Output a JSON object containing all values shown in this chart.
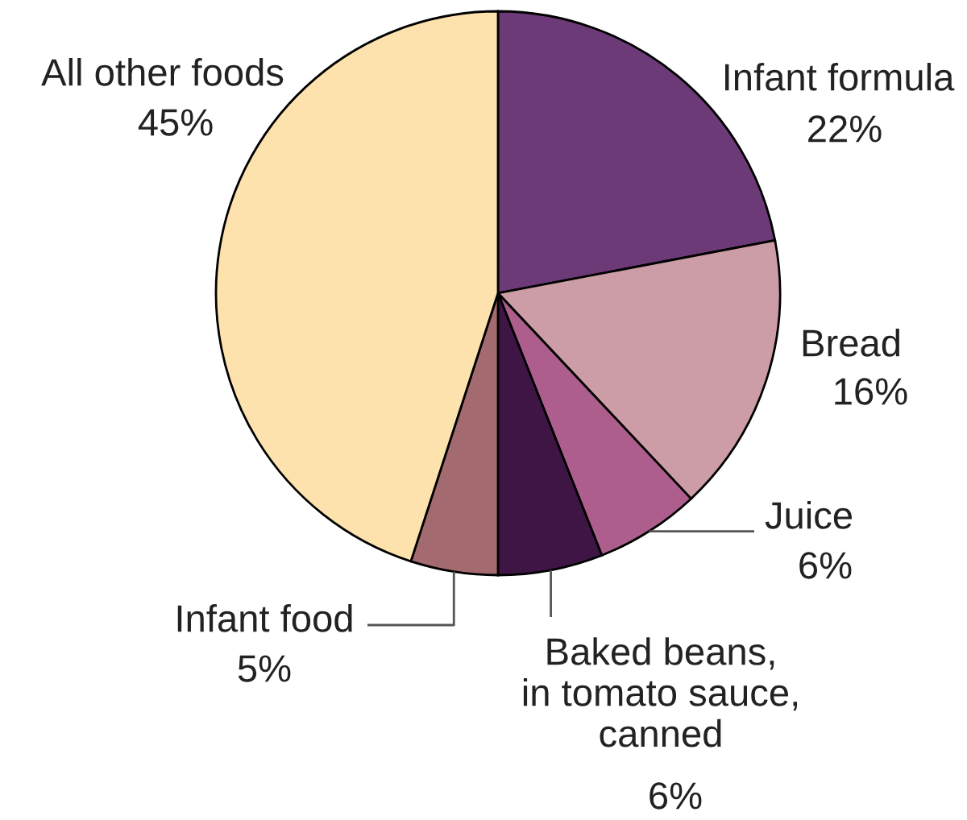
{
  "chart_data": {
    "type": "pie",
    "categories": [
      "Infant formula",
      "Bread",
      "Juice",
      "Baked beans,\nin tomato sauce,\ncanned",
      "Infant food",
      "All other foods"
    ],
    "values": [
      22,
      16,
      6,
      6,
      5,
      45
    ],
    "colors": [
      "#6b3a77",
      "#cc9da7",
      "#ad5e8c",
      "#3f1545",
      "#a36a6f",
      "#fde2ad"
    ],
    "value_labels": [
      "22%",
      "16%",
      "6%",
      "6%",
      "5%",
      "45%"
    ]
  }
}
